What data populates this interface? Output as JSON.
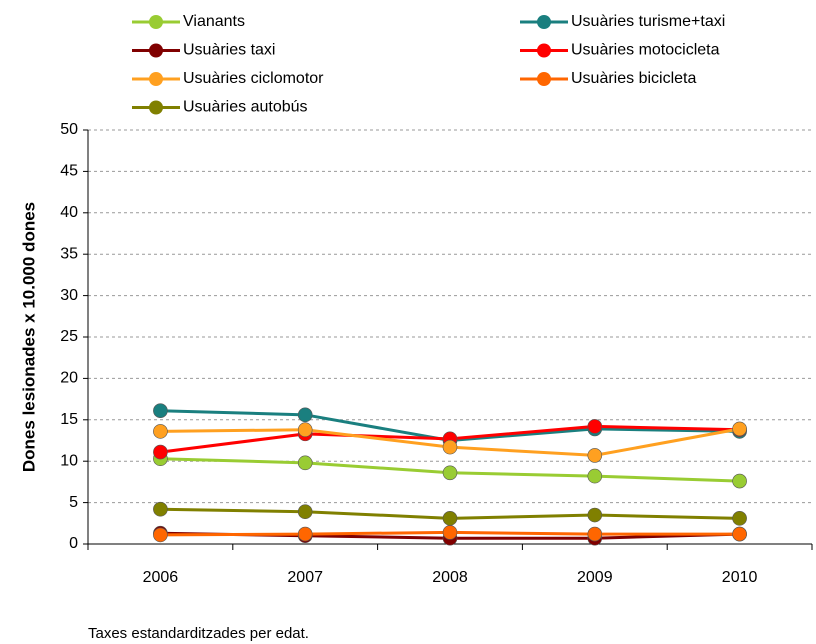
{
  "chart_data": {
    "type": "line",
    "y_label": "Dones lesionades x 10.000 dones",
    "note": "Taxes estandarditzades per edat.",
    "categories": [
      "2006",
      "2007",
      "2008",
      "2009",
      "2010"
    ],
    "series": [
      {
        "name": "Vianants",
        "color": "#99cc33",
        "values": [
          10.3,
          9.8,
          8.6,
          8.2,
          7.6
        ]
      },
      {
        "name": "Usuàries turisme+taxi",
        "color": "#1a7f7f",
        "values": [
          16.1,
          15.6,
          12.5,
          13.9,
          13.6
        ]
      },
      {
        "name": "Usuàries taxi",
        "color": "#800000",
        "values": [
          1.3,
          1.0,
          0.7,
          0.7,
          1.2
        ]
      },
      {
        "name": "Usuàries motocicleta",
        "color": "#ff0000",
        "values": [
          11.1,
          13.3,
          12.7,
          14.2,
          13.8
        ]
      },
      {
        "name": "Usuàries ciclomotor",
        "color": "#ffa020",
        "values": [
          13.6,
          13.8,
          11.7,
          10.7,
          13.9
        ]
      },
      {
        "name": "Usuàries bicicleta",
        "color": "#ff6600",
        "values": [
          1.1,
          1.2,
          1.4,
          1.2,
          1.2
        ]
      },
      {
        "name": "Usuàries autobús",
        "color": "#808000",
        "values": [
          4.2,
          3.9,
          3.1,
          3.5,
          3.1
        ]
      }
    ],
    "ylim": [
      0,
      50
    ],
    "yticks": [
      0,
      5,
      10,
      15,
      20,
      25,
      30,
      35,
      40,
      45,
      50
    ],
    "grid": true
  }
}
